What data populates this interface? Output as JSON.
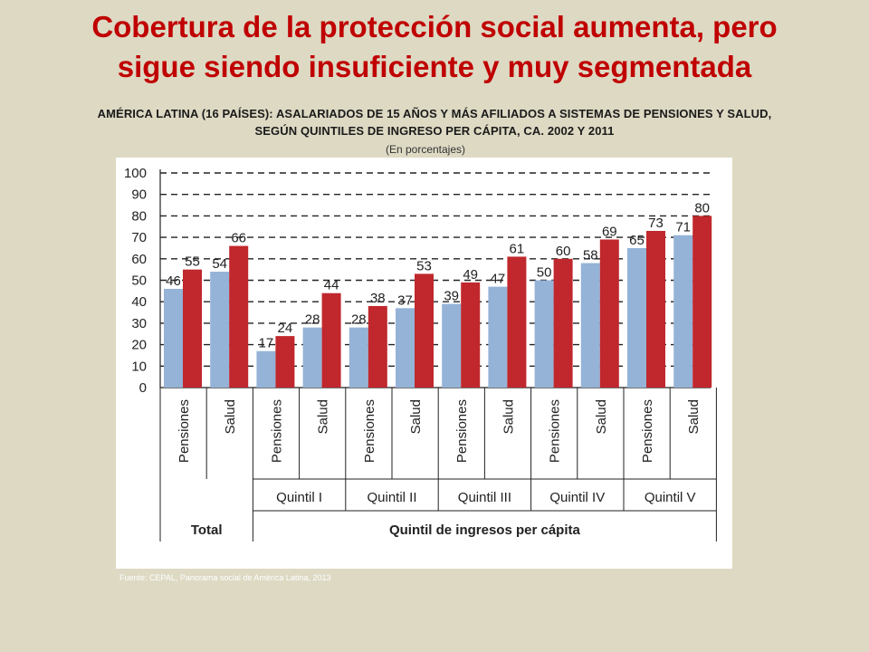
{
  "title_line1": "Cobertura de la protección social aumenta, pero",
  "title_line2": "sigue siendo insuficiente y muy segmentada",
  "subtitle_line1": "AMÉRICA LATINA (16 PAÍSES): ASALARIADOS DE 15 AÑOS Y MÁS AFILIADOS A SISTEMAS DE PENSIONES Y SALUD,",
  "subtitle_line2": "SEGÚN QUINTILES DE INGRESO PER CÁPITA, CA. 2002 Y 2011",
  "units": "(En porcentajes)",
  "source": "Fuente: CEPAL, Panorama social de América Latina, 2013",
  "chart_data": {
    "type": "bar",
    "ylim": [
      0,
      100
    ],
    "yticks": [
      0,
      10,
      20,
      30,
      40,
      50,
      60,
      70,
      80,
      90,
      100
    ],
    "grid": true,
    "categories": [
      "Pensiones",
      "Salud",
      "Pensiones",
      "Salud",
      "Pensiones",
      "Salud",
      "Pensiones",
      "Salud",
      "Pensiones",
      "Salud",
      "Pensiones",
      "Salud"
    ],
    "groups": [
      "",
      "Quintil I",
      "Quintil II",
      "Quintil III",
      "Quintil IV",
      "Quintil V"
    ],
    "supergroups": [
      "Total",
      "Quintil de ingresos per cápita"
    ],
    "series": [
      {
        "name": "2002",
        "color": "#95b3d7",
        "values": [
          46,
          54,
          17,
          28,
          28,
          37,
          39,
          47,
          50,
          58,
          65,
          71
        ]
      },
      {
        "name": "2011",
        "color": "#c0282d",
        "values": [
          55,
          66,
          24,
          44,
          38,
          53,
          49,
          61,
          60,
          69,
          73,
          80
        ]
      }
    ]
  }
}
